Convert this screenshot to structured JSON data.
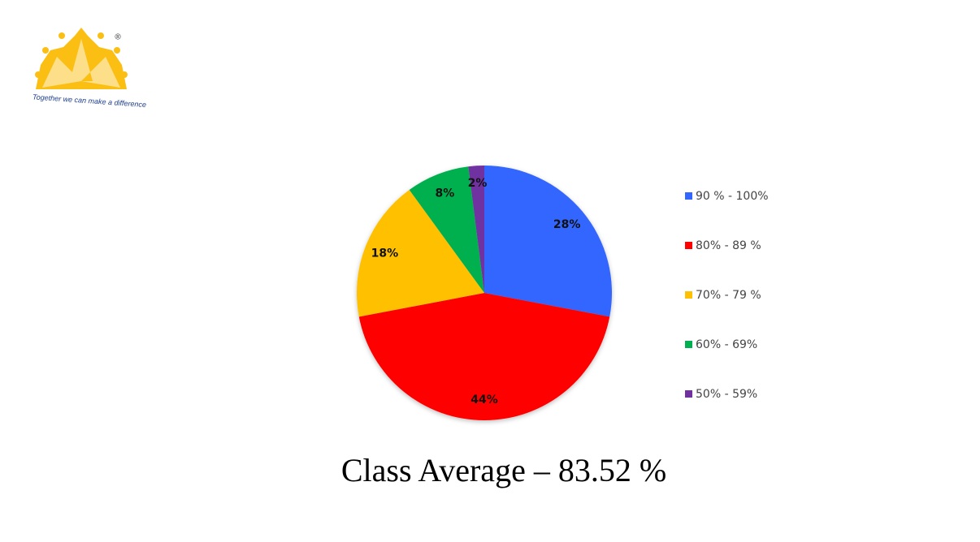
{
  "logo": {
    "mark": "®",
    "tagline": "Together we can make a difference"
  },
  "chart_data": {
    "type": "pie",
    "categories": [
      "90 % - 100%",
      "80% - 89 %",
      "70% - 79 %",
      "60% - 69%",
      "50% - 59%"
    ],
    "values": [
      28,
      44,
      18,
      8,
      2
    ],
    "value_labels": [
      "28%",
      "44%",
      "18%",
      "8%",
      "2%"
    ],
    "colors": [
      "#3366ff",
      "#ff0000",
      "#ffc000",
      "#00b050",
      "#7030a0"
    ],
    "legend": "right",
    "annotation": "Class Average – 83.52 %"
  }
}
